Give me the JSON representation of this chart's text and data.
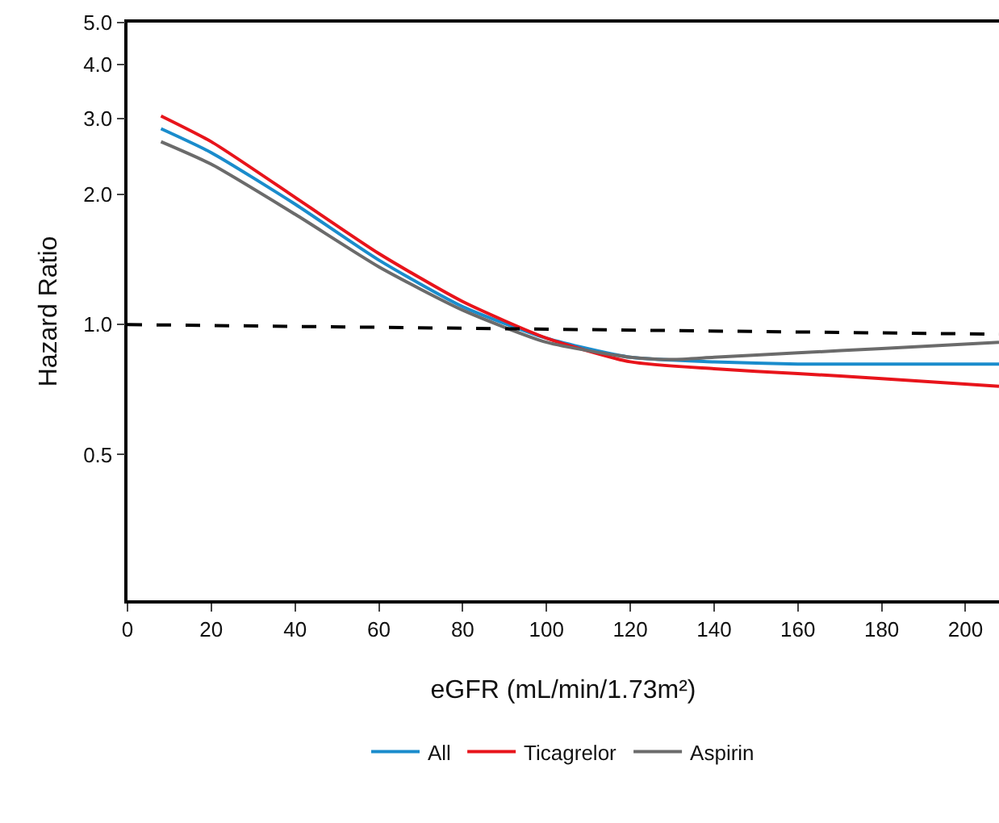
{
  "chart_data": {
    "type": "line",
    "xlabel": "eGFR (mL/min/1.73m²)",
    "ylabel": "Hazard Ratio",
    "log": "y",
    "grid": false,
    "legend": "bottom",
    "marker": "none",
    "xlim": [
      0,
      208
    ],
    "xticks": [
      0,
      20,
      40,
      60,
      80,
      100,
      120,
      140,
      160,
      180,
      200
    ],
    "ylim": [
      0.23,
      5
    ],
    "yticks": [
      {
        "value": 0.5,
        "label": "0.5"
      },
      {
        "value": 1,
        "label": "1.0"
      },
      {
        "value": 2,
        "label": "2.0"
      },
      {
        "value": 3,
        "label": "3.0"
      },
      {
        "value": 4,
        "label": "4.0"
      },
      {
        "value": 5,
        "label": "5.0"
      }
    ],
    "series": [
      {
        "name": "All",
        "color": "#1a8ccc",
        "x": [
          8,
          20,
          40,
          60,
          80,
          100,
          120,
          140,
          160,
          180,
          208
        ],
        "values": [
          2.84,
          2.5,
          1.9,
          1.41,
          1.1,
          0.93,
          0.84,
          0.82,
          0.81,
          0.81,
          0.81
        ]
      },
      {
        "name": "Ticagrelor",
        "color": "#e8141b",
        "x": [
          8,
          20,
          40,
          60,
          80,
          100,
          120,
          140,
          160,
          180,
          208
        ],
        "values": [
          3.04,
          2.65,
          1.97,
          1.46,
          1.13,
          0.93,
          0.82,
          0.79,
          0.77,
          0.75,
          0.72
        ]
      },
      {
        "name": "Aspirin",
        "color": "#6b6b6b",
        "x": [
          8,
          20,
          40,
          60,
          80,
          100,
          120,
          130,
          140,
          160,
          180,
          208
        ],
        "values": [
          2.65,
          2.35,
          1.8,
          1.36,
          1.08,
          0.91,
          0.84,
          0.83,
          0.84,
          0.86,
          0.88,
          0.91
        ]
      },
      {
        "color": "#000000",
        "line_style": "dashed",
        "x": [
          0,
          208
        ],
        "values": [
          1.0,
          0.95
        ]
      }
    ]
  }
}
